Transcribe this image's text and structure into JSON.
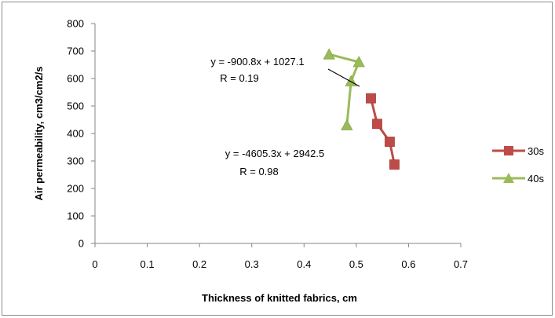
{
  "chart_data": {
    "type": "scatter",
    "xlabel": "Thickness of knitted fabrics, cm",
    "ylabel": "Air permeability, cm3/cm2/s",
    "xlim": [
      0,
      0.7
    ],
    "ylim": [
      0,
      800
    ],
    "x_ticks": [
      "0",
      "0.1",
      "0.2",
      "0.3",
      "0.4",
      "0.5",
      "0.6",
      "0.7"
    ],
    "y_ticks": [
      "0",
      "100",
      "200",
      "300",
      "400",
      "500",
      "600",
      "700",
      "800"
    ],
    "grid": false,
    "legend_position": "right",
    "series": [
      {
        "name": "30s",
        "color": "#be4b48",
        "marker": "square",
        "x": [
          0.528,
          0.54,
          0.564,
          0.573
        ],
        "y": [
          528,
          435,
          370,
          287
        ]
      },
      {
        "name": "40s",
        "color": "#9bbb59",
        "marker": "triangle",
        "x": [
          0.448,
          0.505,
          0.49,
          0.482
        ],
        "y": [
          688,
          660,
          590,
          430
        ]
      }
    ],
    "annotations": [
      {
        "line1": "y = -900.8x + 1027.1",
        "line2": "R = 0.19"
      },
      {
        "line1": "y = -4605.3x + 2942.5",
        "line2": "R = 0.98"
      }
    ]
  }
}
